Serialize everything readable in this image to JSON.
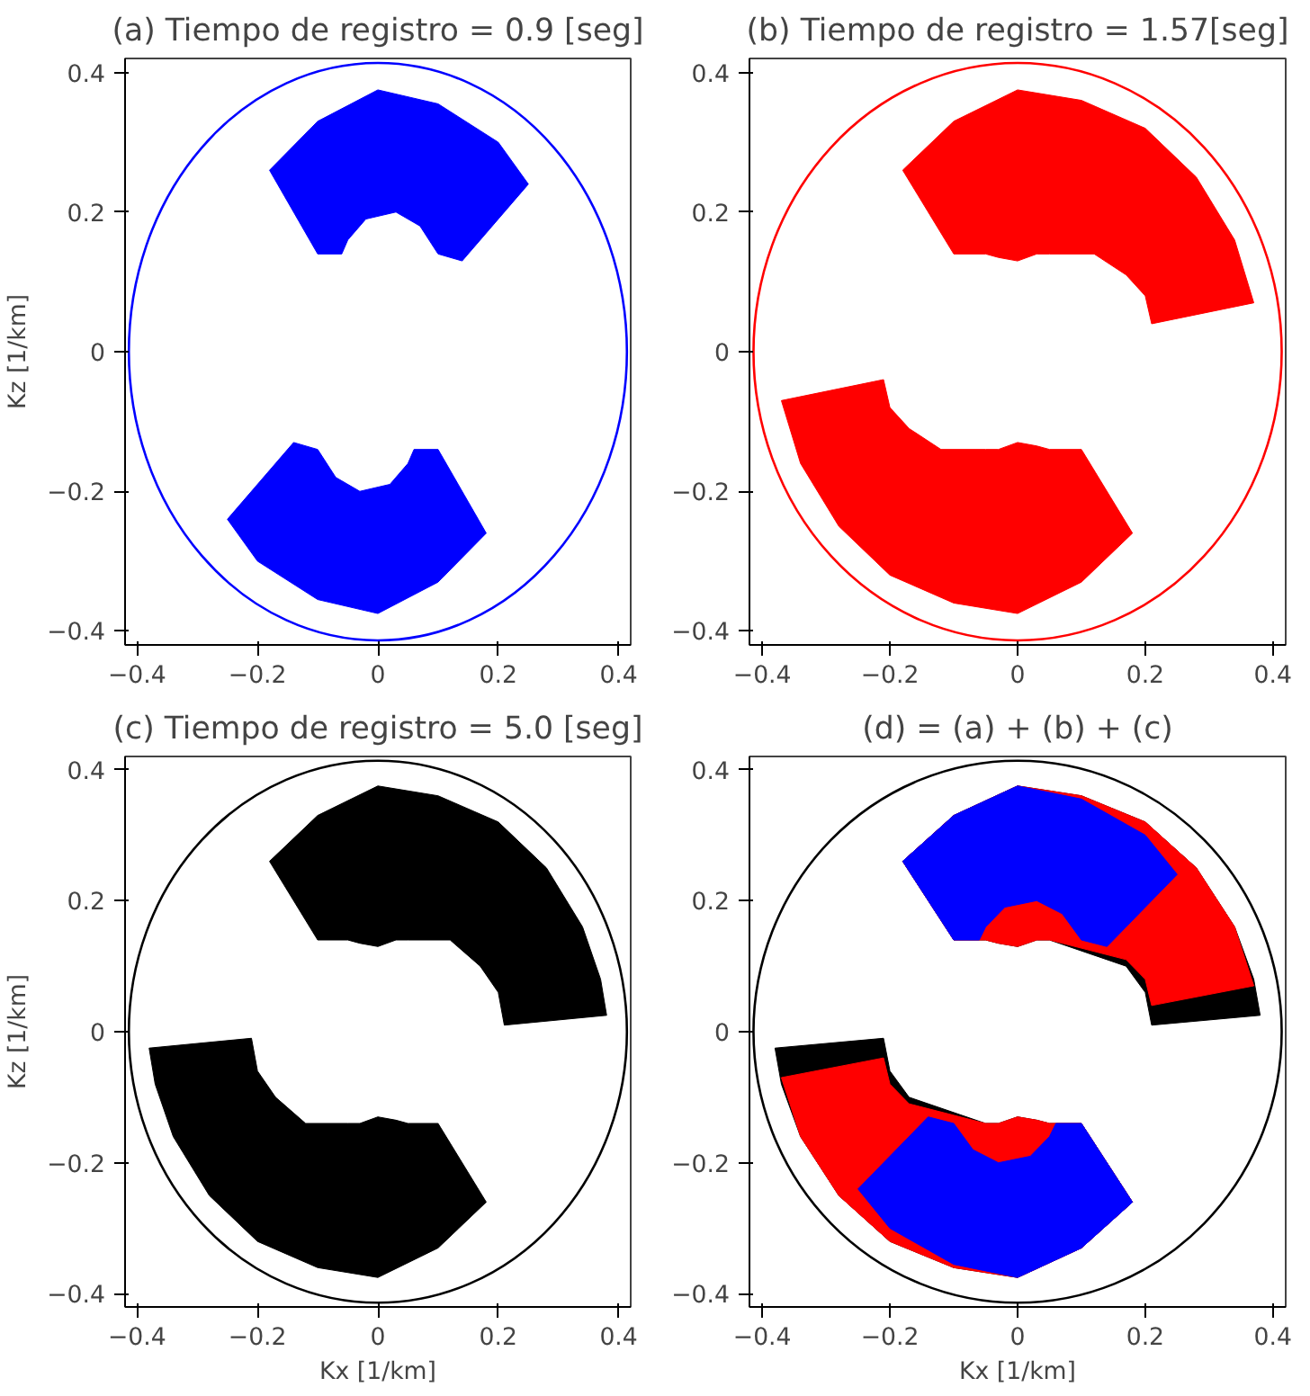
{
  "chart_data": [
    {
      "type": "area",
      "title": "(a) Tiempo de registro = 0.9 [seg]",
      "ylabel": "Kz [1/km]",
      "xlim": [
        -0.42,
        0.42
      ],
      "ylim": [
        -0.42,
        0.42
      ],
      "xticks": [
        -0.4,
        -0.2,
        0,
        0.2,
        0.4
      ],
      "yticks": [
        -0.4,
        -0.2,
        0,
        0.2,
        0.4
      ],
      "grid": false,
      "series": [
        {
          "color": "#0000ff",
          "x": [
            -0.18,
            -0.1,
            0,
            0.1,
            0.2,
            0.25,
            0.14,
            0.1,
            0.07,
            0.03,
            -0.02,
            -0.05,
            -0.06,
            -0.1
          ],
          "values": [
            0.26,
            0.33,
            0.375,
            0.355,
            0.3,
            0.24,
            0.13,
            0.14,
            0.18,
            0.2,
            0.19,
            0.16,
            0.14,
            0.14
          ]
        },
        {
          "color": "#0000ff",
          "x": [
            0.18,
            0.1,
            0,
            -0.1,
            -0.2,
            -0.25,
            -0.14,
            -0.1,
            -0.07,
            -0.03,
            0.02,
            0.05,
            0.06,
            0.1
          ],
          "values": [
            -0.26,
            -0.33,
            -0.375,
            -0.355,
            -0.3,
            -0.24,
            -0.13,
            -0.14,
            -0.18,
            -0.2,
            -0.19,
            -0.16,
            -0.14,
            -0.14
          ]
        }
      ]
    },
    {
      "type": "area",
      "title": "(b) Tiempo de registro = 1.57[seg]",
      "xlim": [
        -0.42,
        0.42
      ],
      "ylim": [
        -0.42,
        0.42
      ],
      "xticks": [
        -0.4,
        -0.2,
        0,
        0.2,
        0.4
      ],
      "yticks": [
        -0.4,
        -0.2,
        0,
        0.2,
        0.4
      ],
      "grid": false,
      "series": [
        {
          "color": "#ff0000",
          "x": [
            -0.18,
            -0.1,
            0,
            0.1,
            0.2,
            0.28,
            0.34,
            0.37,
            0.21,
            0.2,
            0.17,
            0.12,
            0.05,
            0.03,
            0,
            -0.03,
            -0.05,
            -0.1
          ],
          "values": [
            0.26,
            0.33,
            0.375,
            0.36,
            0.32,
            0.25,
            0.16,
            0.07,
            0.04,
            0.08,
            0.11,
            0.14,
            0.14,
            0.14,
            0.13,
            0.135,
            0.14,
            0.14
          ]
        },
        {
          "color": "#ff0000",
          "x": [
            0.18,
            0.1,
            0,
            -0.1,
            -0.2,
            -0.28,
            -0.34,
            -0.37,
            -0.21,
            -0.2,
            -0.17,
            -0.12,
            -0.05,
            -0.03,
            0,
            0.03,
            0.05,
            0.1
          ],
          "values": [
            -0.26,
            -0.33,
            -0.375,
            -0.36,
            -0.32,
            -0.25,
            -0.16,
            -0.07,
            -0.04,
            -0.08,
            -0.11,
            -0.14,
            -0.14,
            -0.14,
            -0.13,
            -0.135,
            -0.14,
            -0.14
          ]
        }
      ]
    },
    {
      "type": "area",
      "title": "(c) Tiempo de registro = 5.0 [seg]",
      "xlabel": "Kx [1/km]",
      "ylabel": "Kz [1/km]",
      "xlim": [
        -0.42,
        0.42
      ],
      "ylim": [
        -0.42,
        0.42
      ],
      "xticks": [
        -0.4,
        -0.2,
        0,
        0.2,
        0.4
      ],
      "yticks": [
        -0.4,
        -0.2,
        0,
        0.2,
        0.4
      ],
      "grid": false,
      "series": [
        {
          "color": "#000000",
          "x": [
            -0.18,
            -0.1,
            0,
            0.1,
            0.2,
            0.28,
            0.34,
            0.37,
            0.38,
            0.21,
            0.2,
            0.17,
            0.12,
            0.05,
            0.03,
            0,
            -0.03,
            -0.05,
            -0.1
          ],
          "values": [
            0.26,
            0.33,
            0.375,
            0.36,
            0.32,
            0.25,
            0.16,
            0.08,
            0.025,
            0.01,
            0.06,
            0.1,
            0.14,
            0.14,
            0.14,
            0.13,
            0.135,
            0.14,
            0.14
          ]
        },
        {
          "color": "#000000",
          "x": [
            0.18,
            0.1,
            0,
            -0.1,
            -0.2,
            -0.28,
            -0.34,
            -0.37,
            -0.38,
            -0.21,
            -0.2,
            -0.17,
            -0.12,
            -0.05,
            -0.03,
            0,
            0.03,
            0.05,
            0.1
          ],
          "values": [
            -0.26,
            -0.33,
            -0.375,
            -0.36,
            -0.32,
            -0.25,
            -0.16,
            -0.08,
            -0.025,
            -0.01,
            -0.06,
            -0.1,
            -0.14,
            -0.14,
            -0.14,
            -0.13,
            -0.135,
            -0.14,
            -0.14
          ]
        }
      ]
    },
    {
      "type": "area",
      "title": "(d) = (a) + (b) + (c)",
      "xlabel": "Kx [1/km]",
      "xlim": [
        -0.42,
        0.42
      ],
      "ylim": [
        -0.42,
        0.42
      ],
      "xticks": [
        -0.4,
        -0.2,
        0,
        0.2,
        0.4
      ],
      "yticks": [
        -0.4,
        -0.2,
        0,
        0.2,
        0.4
      ],
      "grid": false,
      "series": [
        {
          "color": "#000000",
          "x": [
            -0.18,
            -0.1,
            0,
            0.1,
            0.2,
            0.28,
            0.34,
            0.37,
            0.38,
            0.21,
            0.2,
            0.17,
            0.12,
            0.05,
            0.03,
            0,
            -0.03,
            -0.05,
            -0.1
          ],
          "values": [
            0.26,
            0.33,
            0.375,
            0.36,
            0.32,
            0.25,
            0.16,
            0.08,
            0.025,
            0.01,
            0.06,
            0.1,
            null,
            0.14,
            0.14,
            0.13,
            0.135,
            0.14,
            0.14
          ]
        },
        {
          "color": "#000000",
          "x": [
            0.18,
            0.1,
            0,
            -0.1,
            -0.2,
            -0.28,
            -0.34,
            -0.37,
            -0.38,
            -0.21,
            -0.2,
            -0.17,
            -0.12,
            -0.05,
            -0.03,
            0,
            0.03,
            0.05,
            0.1
          ],
          "values": [
            -0.26,
            -0.33,
            -0.375,
            -0.36,
            -0.32,
            -0.25,
            -0.16,
            -0.08,
            -0.025,
            -0.01,
            -0.06,
            -0.1,
            null,
            -0.14,
            -0.14,
            -0.13,
            -0.135,
            -0.14,
            -0.14
          ]
        },
        {
          "color": "#ff0000",
          "x": [
            -0.18,
            -0.1,
            0,
            0.1,
            0.2,
            0.28,
            0.34,
            0.37,
            0.21,
            0.2,
            0.17,
            0.12,
            0.05,
            0.03,
            0,
            -0.03,
            -0.05,
            -0.1
          ],
          "values": [
            0.26,
            0.33,
            0.375,
            0.36,
            0.32,
            0.25,
            0.16,
            0.07,
            0.04,
            0.08,
            0.11,
            null,
            0.14,
            0.14,
            0.13,
            0.135,
            0.14,
            0.14
          ]
        },
        {
          "color": "#ff0000",
          "x": [
            0.18,
            0.1,
            0,
            -0.1,
            -0.2,
            -0.28,
            -0.34,
            -0.37,
            -0.21,
            -0.2,
            -0.17,
            -0.12,
            -0.05,
            -0.03,
            0,
            0.03,
            0.05,
            0.1
          ],
          "values": [
            -0.26,
            -0.33,
            -0.375,
            -0.36,
            -0.32,
            -0.25,
            -0.16,
            -0.07,
            -0.04,
            -0.08,
            -0.11,
            null,
            -0.14,
            -0.14,
            -0.13,
            -0.135,
            -0.14,
            -0.14
          ]
        },
        {
          "color": "#0000ff",
          "x": [
            -0.18,
            -0.1,
            0,
            0.1,
            0.2,
            0.25,
            0.14,
            0.1,
            0.07,
            0.03,
            -0.02,
            -0.05,
            -0.06,
            -0.1
          ],
          "values": [
            0.26,
            0.33,
            0.375,
            0.355,
            0.3,
            0.24,
            0.13,
            0.14,
            0.18,
            0.2,
            0.19,
            0.16,
            0.14,
            0.14
          ]
        },
        {
          "color": "#0000ff",
          "x": [
            0.18,
            0.1,
            0,
            -0.1,
            -0.2,
            -0.25,
            -0.14,
            -0.1,
            -0.07,
            -0.03,
            0.02,
            0.05,
            0.06,
            0.1
          ],
          "values": [
            -0.26,
            -0.33,
            -0.375,
            -0.355,
            -0.3,
            -0.24,
            -0.13,
            -0.14,
            -0.18,
            -0.2,
            -0.19,
            -0.16,
            -0.14,
            -0.14
          ]
        }
      ]
    }
  ]
}
